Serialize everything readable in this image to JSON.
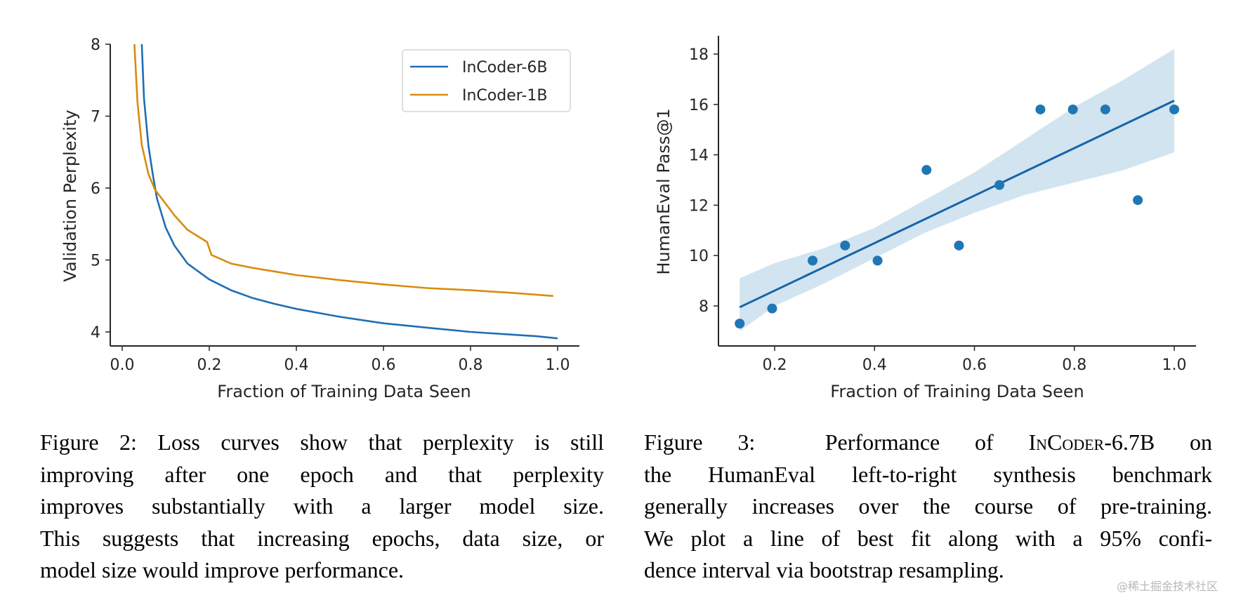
{
  "chart_data": [
    {
      "type": "line",
      "xlabel": "Fraction of Training Data Seen",
      "ylabel": "Validation Perplexity",
      "xlim": [
        -0.03,
        1.05
      ],
      "ylim": [
        3.9,
        8.0
      ],
      "xticks": [
        "0.0",
        "0.2",
        "0.4",
        "0.6",
        "0.8",
        "1.0"
      ],
      "yticks": [
        "4",
        "5",
        "6",
        "7",
        "8"
      ],
      "grid": false,
      "legend": "top-right",
      "series": [
        {
          "name": "InCoder-6B",
          "color": "#1f6eb3",
          "x": [
            0.045,
            0.05,
            0.06,
            0.07,
            0.08,
            0.1,
            0.12,
            0.15,
            0.2,
            0.25,
            0.3,
            0.35,
            0.4,
            0.5,
            0.6,
            0.7,
            0.8,
            0.9,
            0.95,
            1.0
          ],
          "y": [
            8.0,
            7.25,
            6.6,
            6.2,
            5.85,
            5.45,
            5.2,
            4.95,
            4.73,
            4.58,
            4.47,
            4.39,
            4.32,
            4.21,
            4.12,
            4.06,
            4.0,
            3.96,
            3.94,
            3.91
          ]
        },
        {
          "name": "InCoder-1B",
          "color": "#d98c0f",
          "x": [
            0.028,
            0.035,
            0.045,
            0.06,
            0.075,
            0.1,
            0.12,
            0.15,
            0.195,
            0.205,
            0.25,
            0.3,
            0.4,
            0.5,
            0.6,
            0.7,
            0.8,
            0.9,
            0.99
          ],
          "y": [
            8.0,
            7.2,
            6.6,
            6.2,
            5.98,
            5.78,
            5.62,
            5.42,
            5.25,
            5.07,
            4.95,
            4.89,
            4.79,
            4.72,
            4.66,
            4.61,
            4.58,
            4.54,
            4.5
          ]
        }
      ]
    },
    {
      "type": "scatter",
      "xlabel": "Fraction of Training Data Seen",
      "ylabel": "HumanEval Pass@1",
      "xlim": [
        0.1,
        1.05
      ],
      "ylim": [
        6.6,
        18.8
      ],
      "xticks": [
        "0.2",
        "0.4",
        "0.6",
        "0.8",
        "1.0"
      ],
      "yticks": [
        "8",
        "10",
        "12",
        "14",
        "16",
        "18"
      ],
      "grid": false,
      "color": "#1f77b4",
      "points": {
        "x": [
          0.13,
          0.195,
          0.276,
          0.341,
          0.406,
          0.504,
          0.569,
          0.65,
          0.732,
          0.797,
          0.862,
          0.927,
          1.0
        ],
        "y": [
          7.3,
          7.9,
          9.8,
          10.4,
          9.8,
          13.4,
          10.4,
          12.8,
          15.8,
          15.8,
          15.8,
          12.2,
          15.8
        ]
      },
      "fit_line": {
        "x": [
          0.13,
          1.0
        ],
        "y": [
          7.95,
          16.15
        ]
      },
      "confidence_interval": {
        "level": "95%",
        "x": [
          0.13,
          0.2,
          0.3,
          0.4,
          0.5,
          0.6,
          0.7,
          0.8,
          0.9,
          1.0
        ],
        "lower": [
          7.0,
          8.0,
          8.9,
          9.9,
          10.9,
          11.7,
          12.4,
          12.9,
          13.4,
          14.1
        ],
        "upper": [
          9.1,
          9.7,
          10.3,
          11.1,
          12.2,
          13.3,
          14.6,
          15.9,
          17.0,
          18.2
        ]
      }
    }
  ],
  "captions": {
    "fig2": [
      "Figure 2: Loss curves show that perplexity is still",
      "improving after one epoch and that perplexity",
      "improves substantially with a larger model size.",
      "This suggests that increasing epochs, data size, or",
      "model size would improve performance."
    ],
    "fig3": {
      "line1_prefix": "Figure 3:  Performance of ",
      "line1_model": "InCoder-6.7B",
      "line1_suffix": " on",
      "rest": [
        "the HumanEval left-to-right synthesis benchmark",
        "generally increases over the course of pre-training.",
        "We plot a line of best fit along with a 95% confi-",
        "dence interval via bootstrap resampling."
      ]
    }
  },
  "watermark": "@稀土掘金技术社区"
}
